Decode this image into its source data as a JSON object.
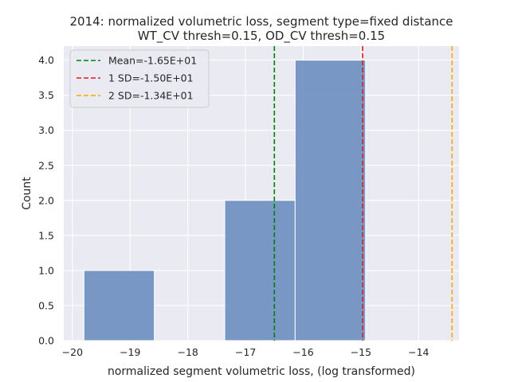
{
  "chart_data": {
    "type": "bar",
    "title": [
      "2014: normalized volumetric loss, segment type=fixed distance",
      "WT_CV thresh=0.15, OD_CV thresh=0.15"
    ],
    "xlabel": "normalized segment volumetric loss, (log transformed)",
    "ylabel": "Count",
    "xlim": [
      -20.15,
      -13.3
    ],
    "ylim": [
      0,
      4.2
    ],
    "xticks": [
      -20,
      -19,
      -18,
      -17,
      -16,
      -15,
      -14
    ],
    "xtick_labels": [
      "−20",
      "−19",
      "−18",
      "−17",
      "−16",
      "−15",
      "−14"
    ],
    "yticks": [
      0.0,
      0.5,
      1.0,
      1.5,
      2.0,
      2.5,
      3.0,
      3.5,
      4.0
    ],
    "ytick_labels": [
      "0.0",
      "0.5",
      "1.0",
      "1.5",
      "2.0",
      "2.5",
      "3.0",
      "3.5",
      "4.0"
    ],
    "grid": true,
    "bar_color": "#6c8ebf",
    "background_color": "#eaeaf2",
    "bins": [
      {
        "x0": -19.8,
        "x1": -18.58,
        "count": 1
      },
      {
        "x0": -17.36,
        "x1": -16.14,
        "count": 2
      },
      {
        "x0": -16.14,
        "x1": -14.92,
        "count": 4
      }
    ],
    "lines": [
      {
        "label": "Mean=-1.65E+01",
        "x": -16.5,
        "color": "#008000"
      },
      {
        "label": "1 SD=-1.50E+01",
        "x": -14.97,
        "color": "#e41a1c"
      },
      {
        "label": "2 SD=-1.34E+01",
        "x": -13.42,
        "color": "#ffa500"
      }
    ],
    "legend_position": "top-left"
  }
}
